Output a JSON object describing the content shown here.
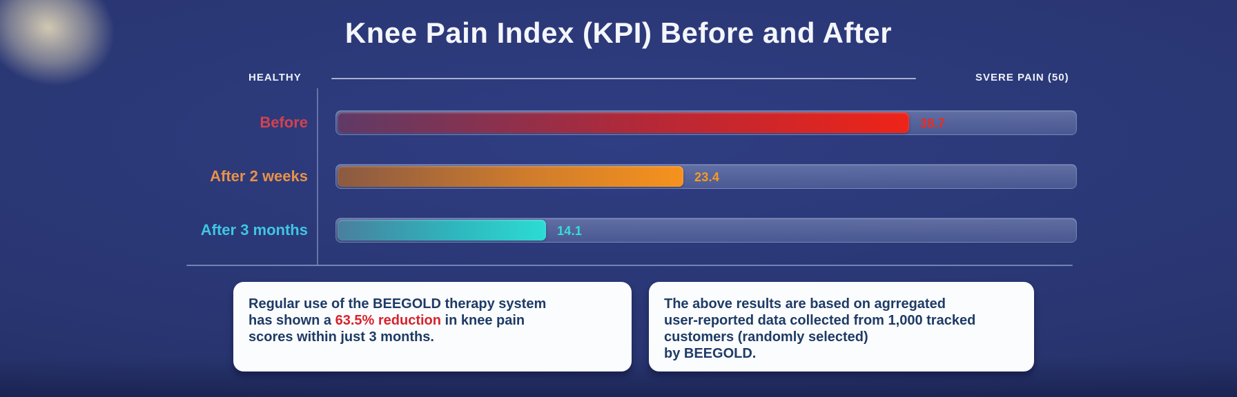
{
  "title": "Knee Pain Index (KPI) Before and After",
  "chart_data": {
    "type": "bar",
    "orientation": "horizontal",
    "title": "Knee Pain Index (KPI) Before and After",
    "axis_left_label": "HEALTHY",
    "axis_right_label": "SVERE PAIN (50)",
    "xlim": [
      0,
      50
    ],
    "grid": false,
    "legend": false,
    "categories": [
      "Before",
      "After 2 weeks",
      "After 3 months"
    ],
    "values": [
      38.7,
      23.4,
      14.1
    ],
    "bars": [
      {
        "label": "Before",
        "value": 38.7,
        "label_color": "#d5414e",
        "value_color": "#ef2a1c",
        "gradient": [
          "#5f3a66",
          "#b62836",
          "#ee2418"
        ]
      },
      {
        "label": "After 2 weeks",
        "value": 23.4,
        "label_color": "#e89149",
        "value_color": "#f79b21",
        "gradient": [
          "#8a5a43",
          "#cf7c2c",
          "#f6921d"
        ]
      },
      {
        "label": "After 3 months",
        "value": 14.1,
        "label_color": "#3fc6e2",
        "value_color": "#35ded8",
        "gradient": [
          "#497f9e",
          "#2fb5bd",
          "#2cdcd4"
        ]
      }
    ]
  },
  "cards": [
    {
      "line1": "Regular use of the BEEGOLD therapy system",
      "line2_pre": "has shown a ",
      "line2_highlight": "63.5% reduction",
      "line2_post": " in knee pain",
      "line3": "scores within just 3 months.",
      "highlight_color": "#d8232b"
    },
    {
      "line1": "The above results are based on agrregated",
      "line2": "user-reported data collected from 1,000 tracked",
      "line3": "customers (randomly selected)",
      "line4": "by BEEGOLD."
    }
  ],
  "colors": {
    "background": "#293672",
    "title_text": "#f4f6fb",
    "axis_caption_text": "#eef2f8",
    "track": "rgba(148,163,205,0.40)",
    "card_background": "#fbfcfd",
    "card_text": "#1e3b66",
    "card_highlight": "#d8232b",
    "corner_glow": "#dad0b6"
  }
}
